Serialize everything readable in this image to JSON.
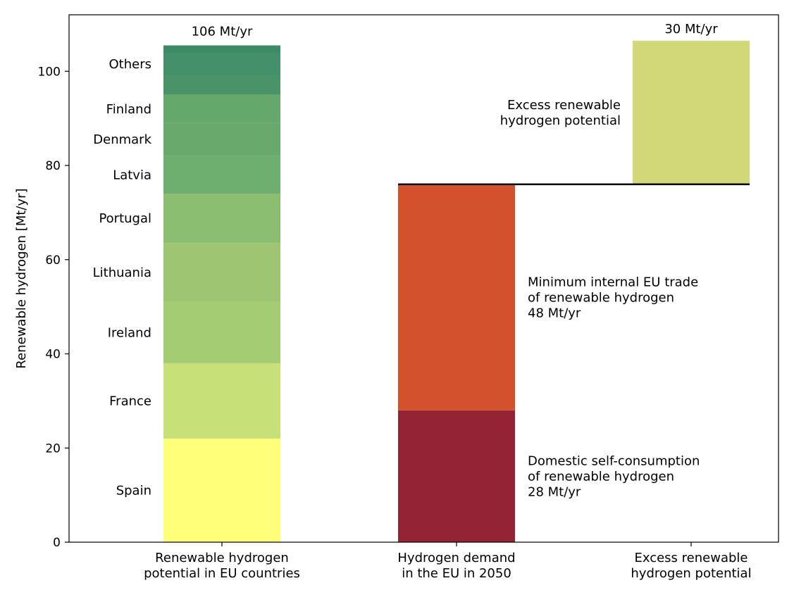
{
  "chart_data": {
    "type": "bar",
    "ylabel": "Renewable hydrogen [Mt/yr]",
    "ylim": [
      0,
      112
    ],
    "yticks": [
      0,
      20,
      40,
      60,
      80,
      100
    ],
    "grid": false,
    "categories": [
      [
        "Renewable hydrogen",
        "potential in EU countries"
      ],
      [
        "Hydrogen demand",
        "in the EU in 2050"
      ],
      [
        "Excess renewable",
        "hydrogen potential"
      ]
    ],
    "potential_stack": [
      {
        "country": "Spain",
        "value": 22.0,
        "label": "Spain",
        "color": "#ffff7a"
      },
      {
        "country": "France",
        "value": 16.0,
        "label": "France",
        "color": "#c8e078"
      },
      {
        "country": "Ireland",
        "value": 13.0,
        "label": "Ireland",
        "color": "#a4cc72"
      },
      {
        "country": "Lithuania",
        "value": 12.5,
        "label": "Lithuania",
        "color": "#9ec672"
      },
      {
        "country": "Portugal",
        "value": 10.5,
        "label": "Portugal",
        "color": "#8cbe72"
      },
      {
        "country": "Latvia",
        "value": 8.0,
        "label": "Latvia",
        "color": "#6eae6e"
      },
      {
        "country": "Denmark",
        "value": 7.0,
        "label": "Denmark",
        "color": "#69aa6c"
      },
      {
        "country": "Finland",
        "value": 6.0,
        "label": "Finland",
        "color": "#65a86c"
      },
      {
        "country": "Others1",
        "value": 4.0,
        "label": "",
        "color": "#4a9268"
      },
      {
        "country": "Others2",
        "value": 5.0,
        "label": "Others",
        "color": "#44906a"
      },
      {
        "country": "Others3",
        "value": 1.5,
        "label": "",
        "color": "#3c8a66"
      }
    ],
    "potential_total_label": "106 Mt/yr",
    "demand_stack": [
      {
        "name": "Domestic self-consumption",
        "value": 28,
        "color": "#952336",
        "annotation": [
          "Domestic self-consumption",
          "of renewable hydrogen",
          "28 Mt/yr"
        ]
      },
      {
        "name": "Minimum internal EU trade",
        "value": 48,
        "color": "#d3522c",
        "annotation": [
          "Minimum internal EU trade",
          "of renewable hydrogen",
          "48 Mt/yr"
        ]
      }
    ],
    "demand_line": 76,
    "excess": {
      "bottom": 76,
      "top": 106.5,
      "color": "#d2d878",
      "total_label": "30 Mt/yr",
      "annotation": [
        "Excess renewable",
        "hydrogen potential"
      ]
    }
  }
}
